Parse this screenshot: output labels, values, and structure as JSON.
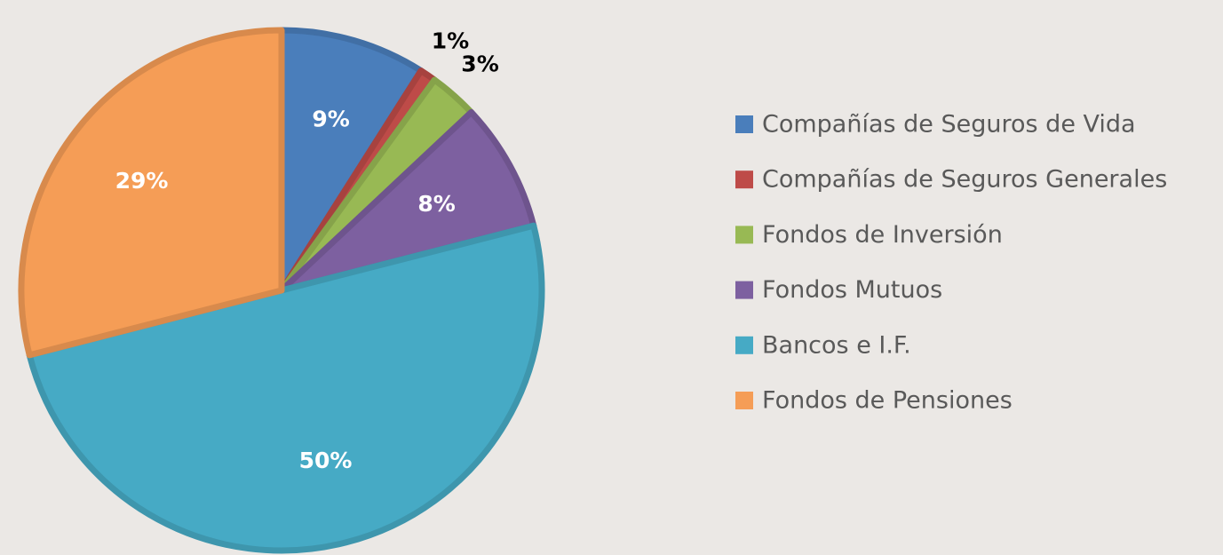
{
  "chart_data": {
    "type": "pie",
    "categories": [
      "Compañías de Seguros de Vida",
      "Compañías de Seguros Generales",
      "Fondos de Inversión",
      "Fondos Mutuos",
      "Bancos e I.F.",
      "Fondos de Pensiones"
    ],
    "values": [
      9,
      1,
      3,
      8,
      50,
      29
    ],
    "value_labels": [
      "9%",
      "1%",
      "3%",
      "8%",
      "50%",
      "29%"
    ],
    "colors": [
      "#4a7ebb",
      "#be4b48",
      "#98b954",
      "#7d60a0",
      "#46aac5",
      "#f59d56"
    ],
    "legend": "right"
  }
}
